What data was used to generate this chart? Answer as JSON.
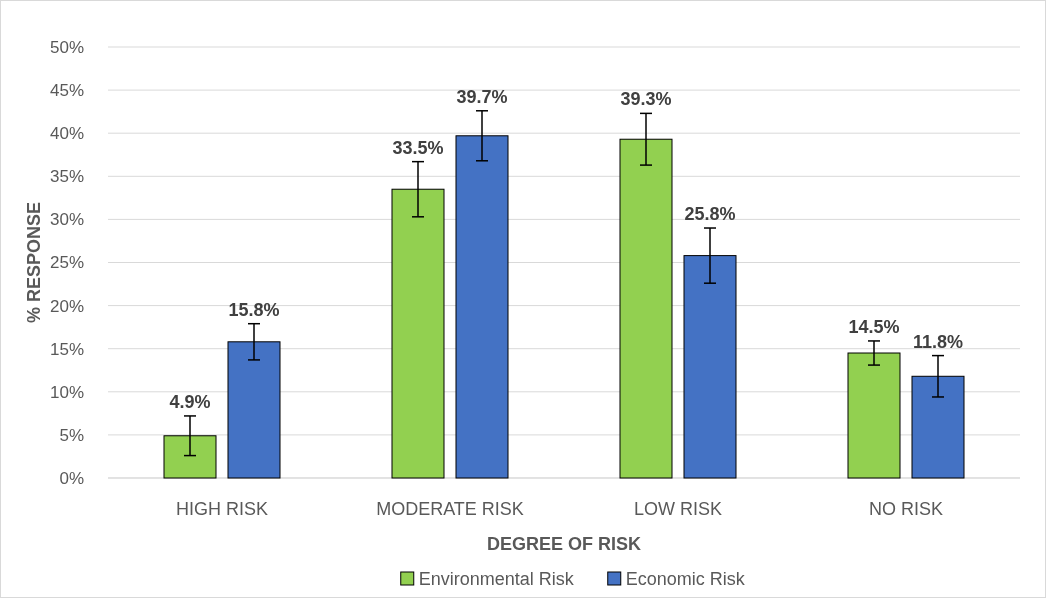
{
  "chart_data": {
    "type": "bar",
    "xlabel": "DEGREE OF RISK",
    "ylabel": "% RESPONSE",
    "categories": [
      "HIGH RISK",
      "MODERATE RISK",
      "LOW RISK",
      "NO RISK"
    ],
    "series": [
      {
        "name": "Environmental Risk",
        "color": "#92d050",
        "values": [
          4.9,
          33.5,
          39.3,
          14.5
        ],
        "errors": [
          2.3,
          3.2,
          3.0,
          1.4
        ],
        "value_labels": [
          "4.9%",
          "33.5%",
          "39.3%",
          "14.5%"
        ]
      },
      {
        "name": "Economic Risk",
        "color": "#4472c4",
        "values": [
          15.8,
          39.7,
          25.8,
          11.8
        ],
        "errors": [
          2.1,
          2.9,
          3.2,
          2.4
        ],
        "value_labels": [
          "15.8%",
          "39.7%",
          "25.8%",
          "11.8%"
        ]
      }
    ],
    "ylim": [
      0,
      50
    ],
    "yticks": [
      {
        "value": 0,
        "label": "0%"
      },
      {
        "value": 5,
        "label": "5%"
      },
      {
        "value": 10,
        "label": "10%"
      },
      {
        "value": 15,
        "label": "15%"
      },
      {
        "value": 20,
        "label": "20%"
      },
      {
        "value": 25,
        "label": "25%"
      },
      {
        "value": 30,
        "label": "30%"
      },
      {
        "value": 35,
        "label": "35%"
      },
      {
        "value": 40,
        "label": "40%"
      },
      {
        "value": 45,
        "label": "45%"
      },
      {
        "value": 50,
        "label": "50%"
      }
    ],
    "grid": "y",
    "legend": "bottom"
  }
}
